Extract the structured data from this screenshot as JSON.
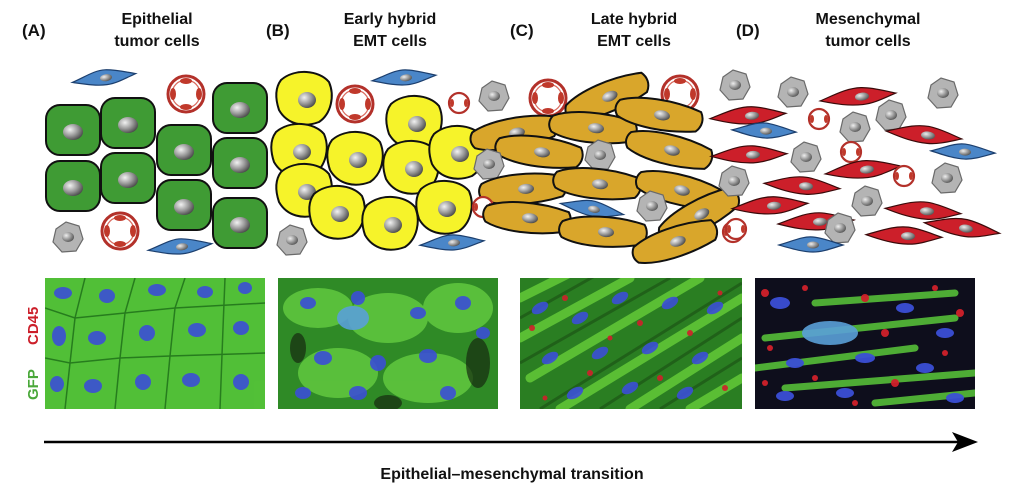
{
  "panels": [
    {
      "letter": "(A)",
      "title_line1": "Epithelial",
      "title_line2": "tumor cells"
    },
    {
      "letter": "(B)",
      "title_line1": "Early hybrid",
      "title_line2": "EMT cells"
    },
    {
      "letter": "(C)",
      "title_line1": "Late hybrid",
      "title_line2": "EMT cells"
    },
    {
      "letter": "(D)",
      "title_line1": "Mesenchymal",
      "title_line2": "tumor cells"
    }
  ],
  "stain_labels": {
    "gfp": "GFP",
    "cd45": "CD45"
  },
  "axis_caption": "Epithelial–mesenchymal transition",
  "colors": {
    "epithelial": "#3f9b34",
    "early_hybrid": "#f6f32a",
    "late_hybrid": "#d9a62b",
    "mesenchymal": "#cc1f2a",
    "fibroblast": "#4a86c8",
    "immune": "#a8a8a8",
    "vessel": "#c0392b",
    "gfp": "#6ad43a",
    "cd45": "#d0202a"
  }
}
